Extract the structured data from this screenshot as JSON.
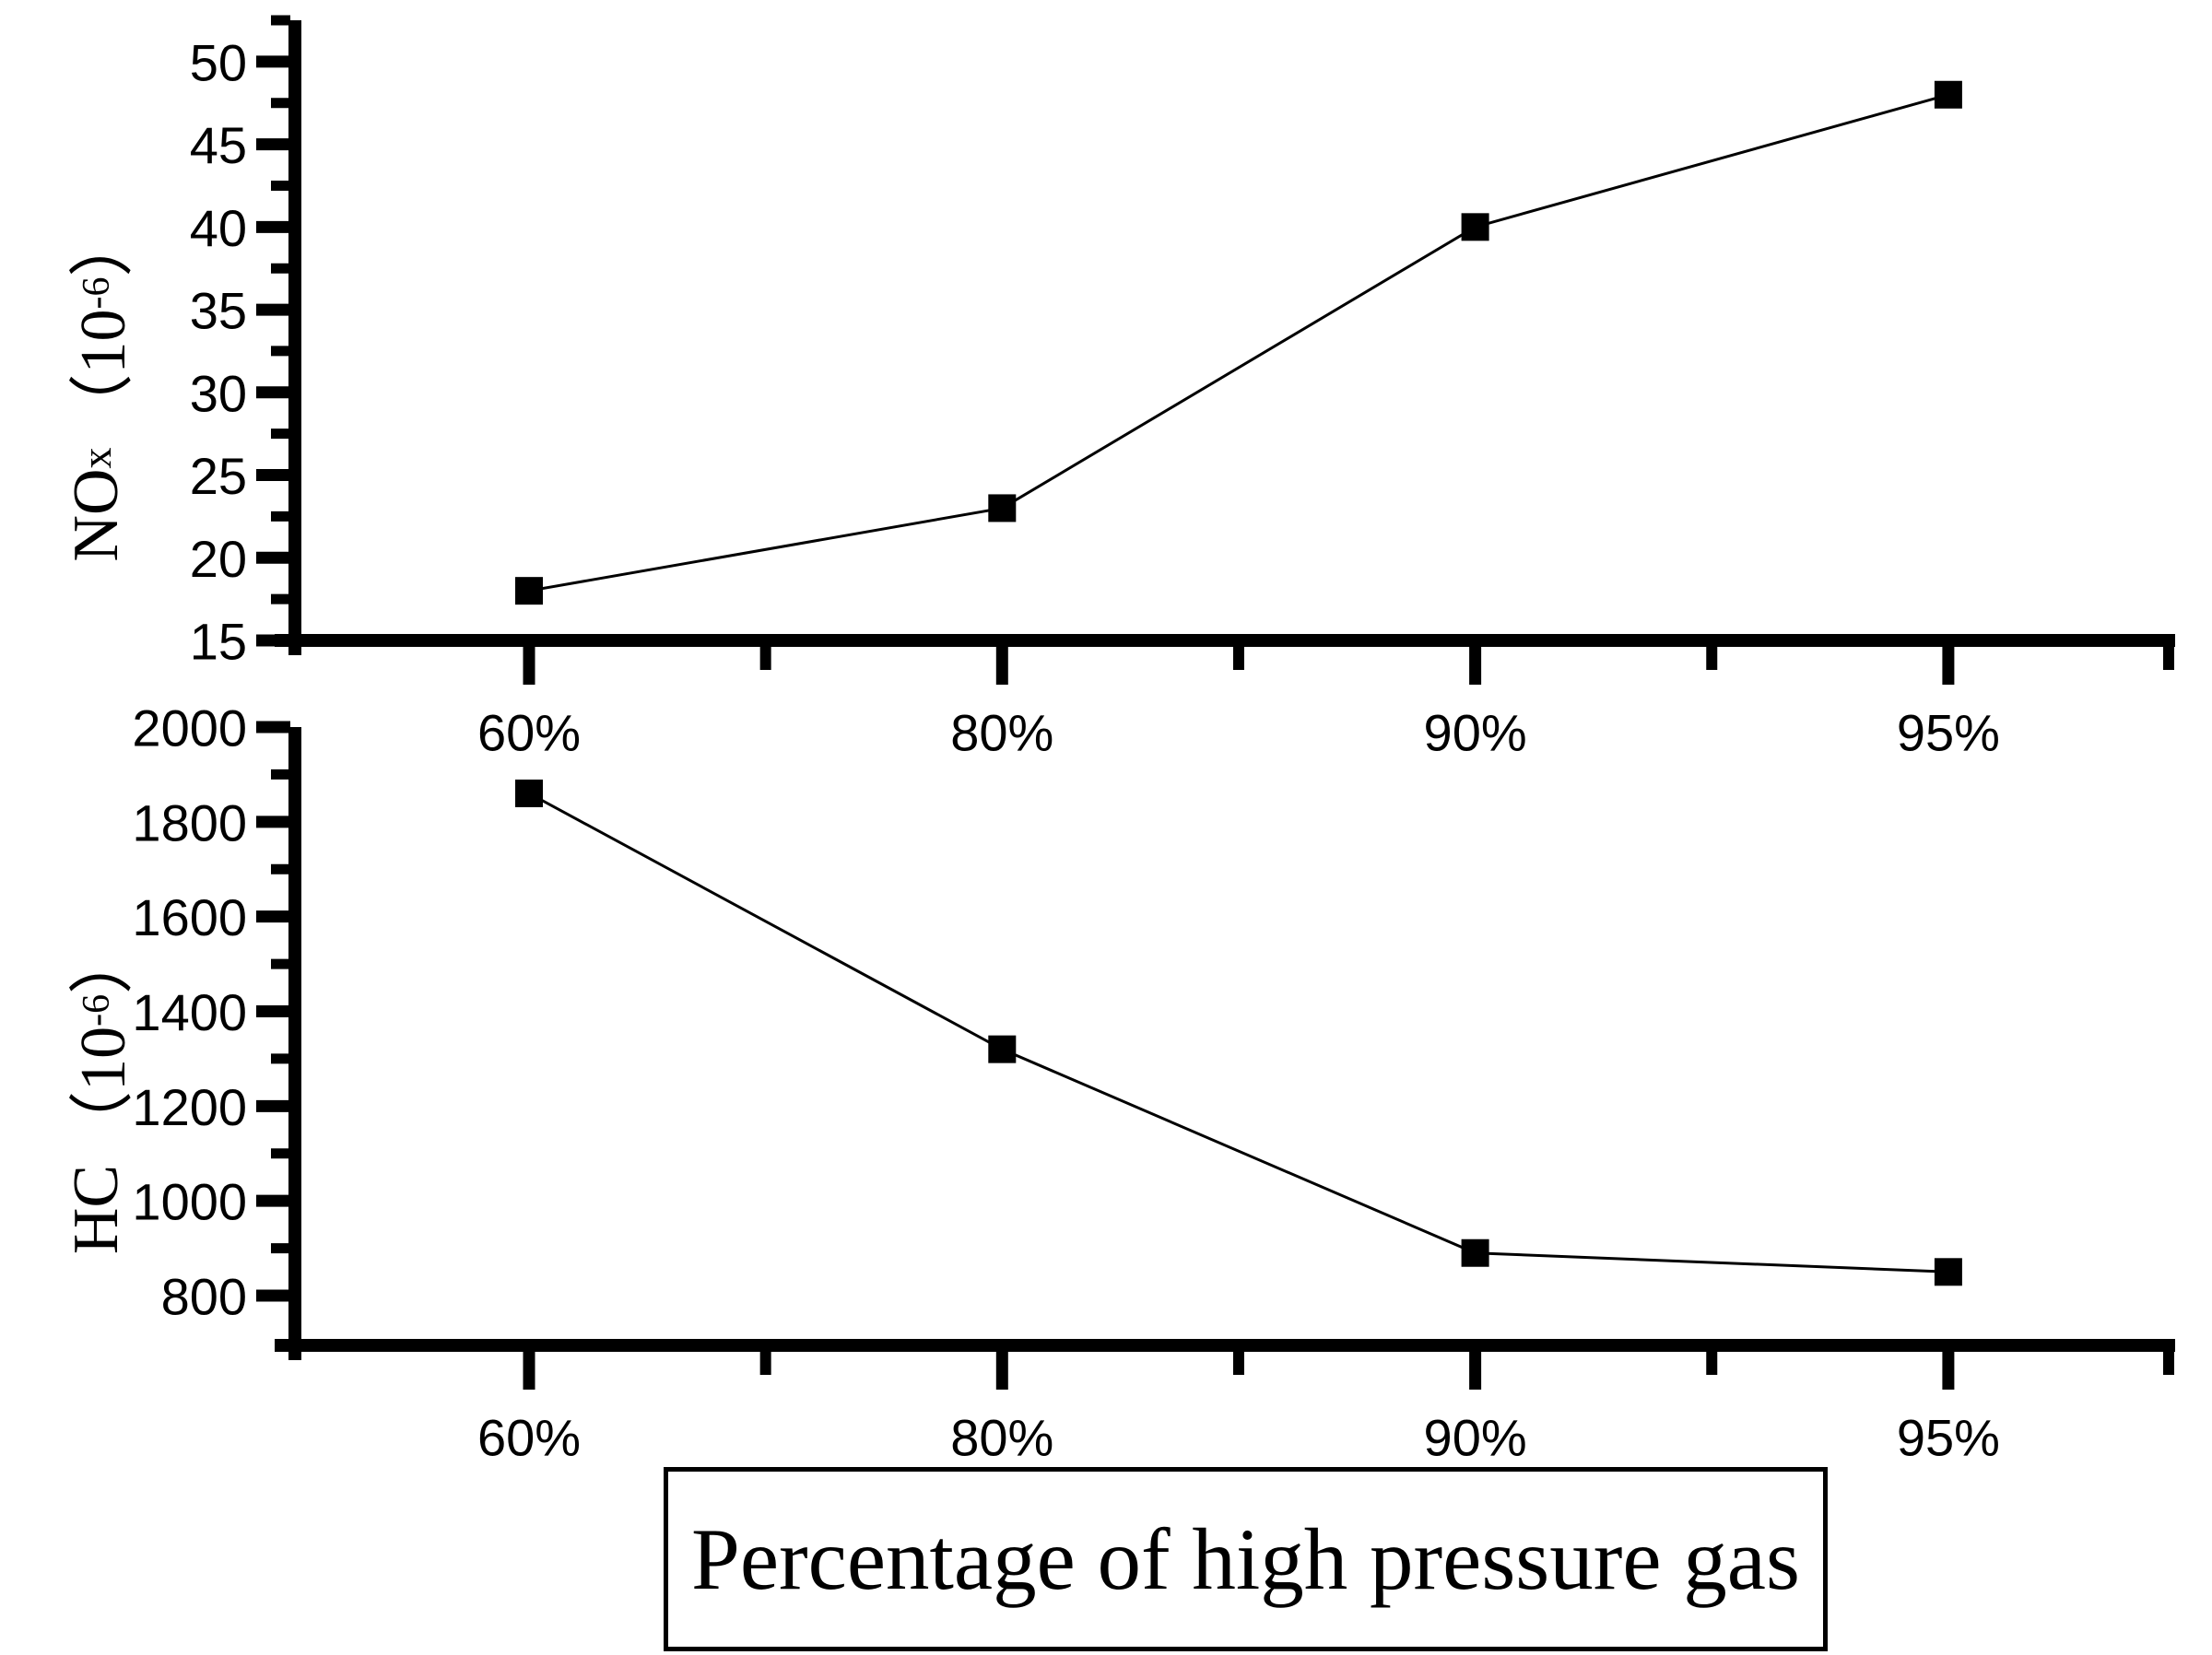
{
  "colors": {
    "foreground": "#000000",
    "background": "#ffffff"
  },
  "xlabel_box": {
    "label": "Percentage of high pressure gas"
  },
  "chart_data": [
    {
      "id": "nox",
      "type": "line",
      "series_name": "NOx",
      "title": "",
      "categories": [
        "60%",
        "80%",
        "90%",
        "95%"
      ],
      "values": [
        18,
        23,
        40,
        48
      ],
      "ylabel": "NOx (10^-6)",
      "ylabel_parts": {
        "main": "NO",
        "sub": "x",
        "open": "（10",
        "exp": "-6",
        "close": "）"
      },
      "ylim": [
        15,
        52.5
      ],
      "yticks": [
        15,
        20,
        25,
        30,
        35,
        40,
        45,
        50
      ],
      "y_minor_step": 2.5,
      "marker": "filled-square",
      "line_color": "#000000",
      "grid": false,
      "legend": null
    },
    {
      "id": "hc",
      "type": "line",
      "series_name": "HC",
      "title": "",
      "categories": [
        "60%",
        "80%",
        "90%",
        "95%"
      ],
      "values": [
        1860,
        1320,
        890,
        850
      ],
      "ylabel": "HC (10^-6)",
      "ylabel_parts": {
        "main": "HC",
        "sub": "",
        "open": "（10",
        "exp": "-6",
        "close": "）"
      },
      "ylim": [
        695,
        2000
      ],
      "yticks": [
        800,
        1000,
        1200,
        1400,
        1600,
        1800,
        2000
      ],
      "y_minor_step": 100,
      "xlabel": "Percentage of high pressure gas",
      "marker": "filled-square",
      "line_color": "#000000",
      "grid": false,
      "legend": null
    }
  ]
}
